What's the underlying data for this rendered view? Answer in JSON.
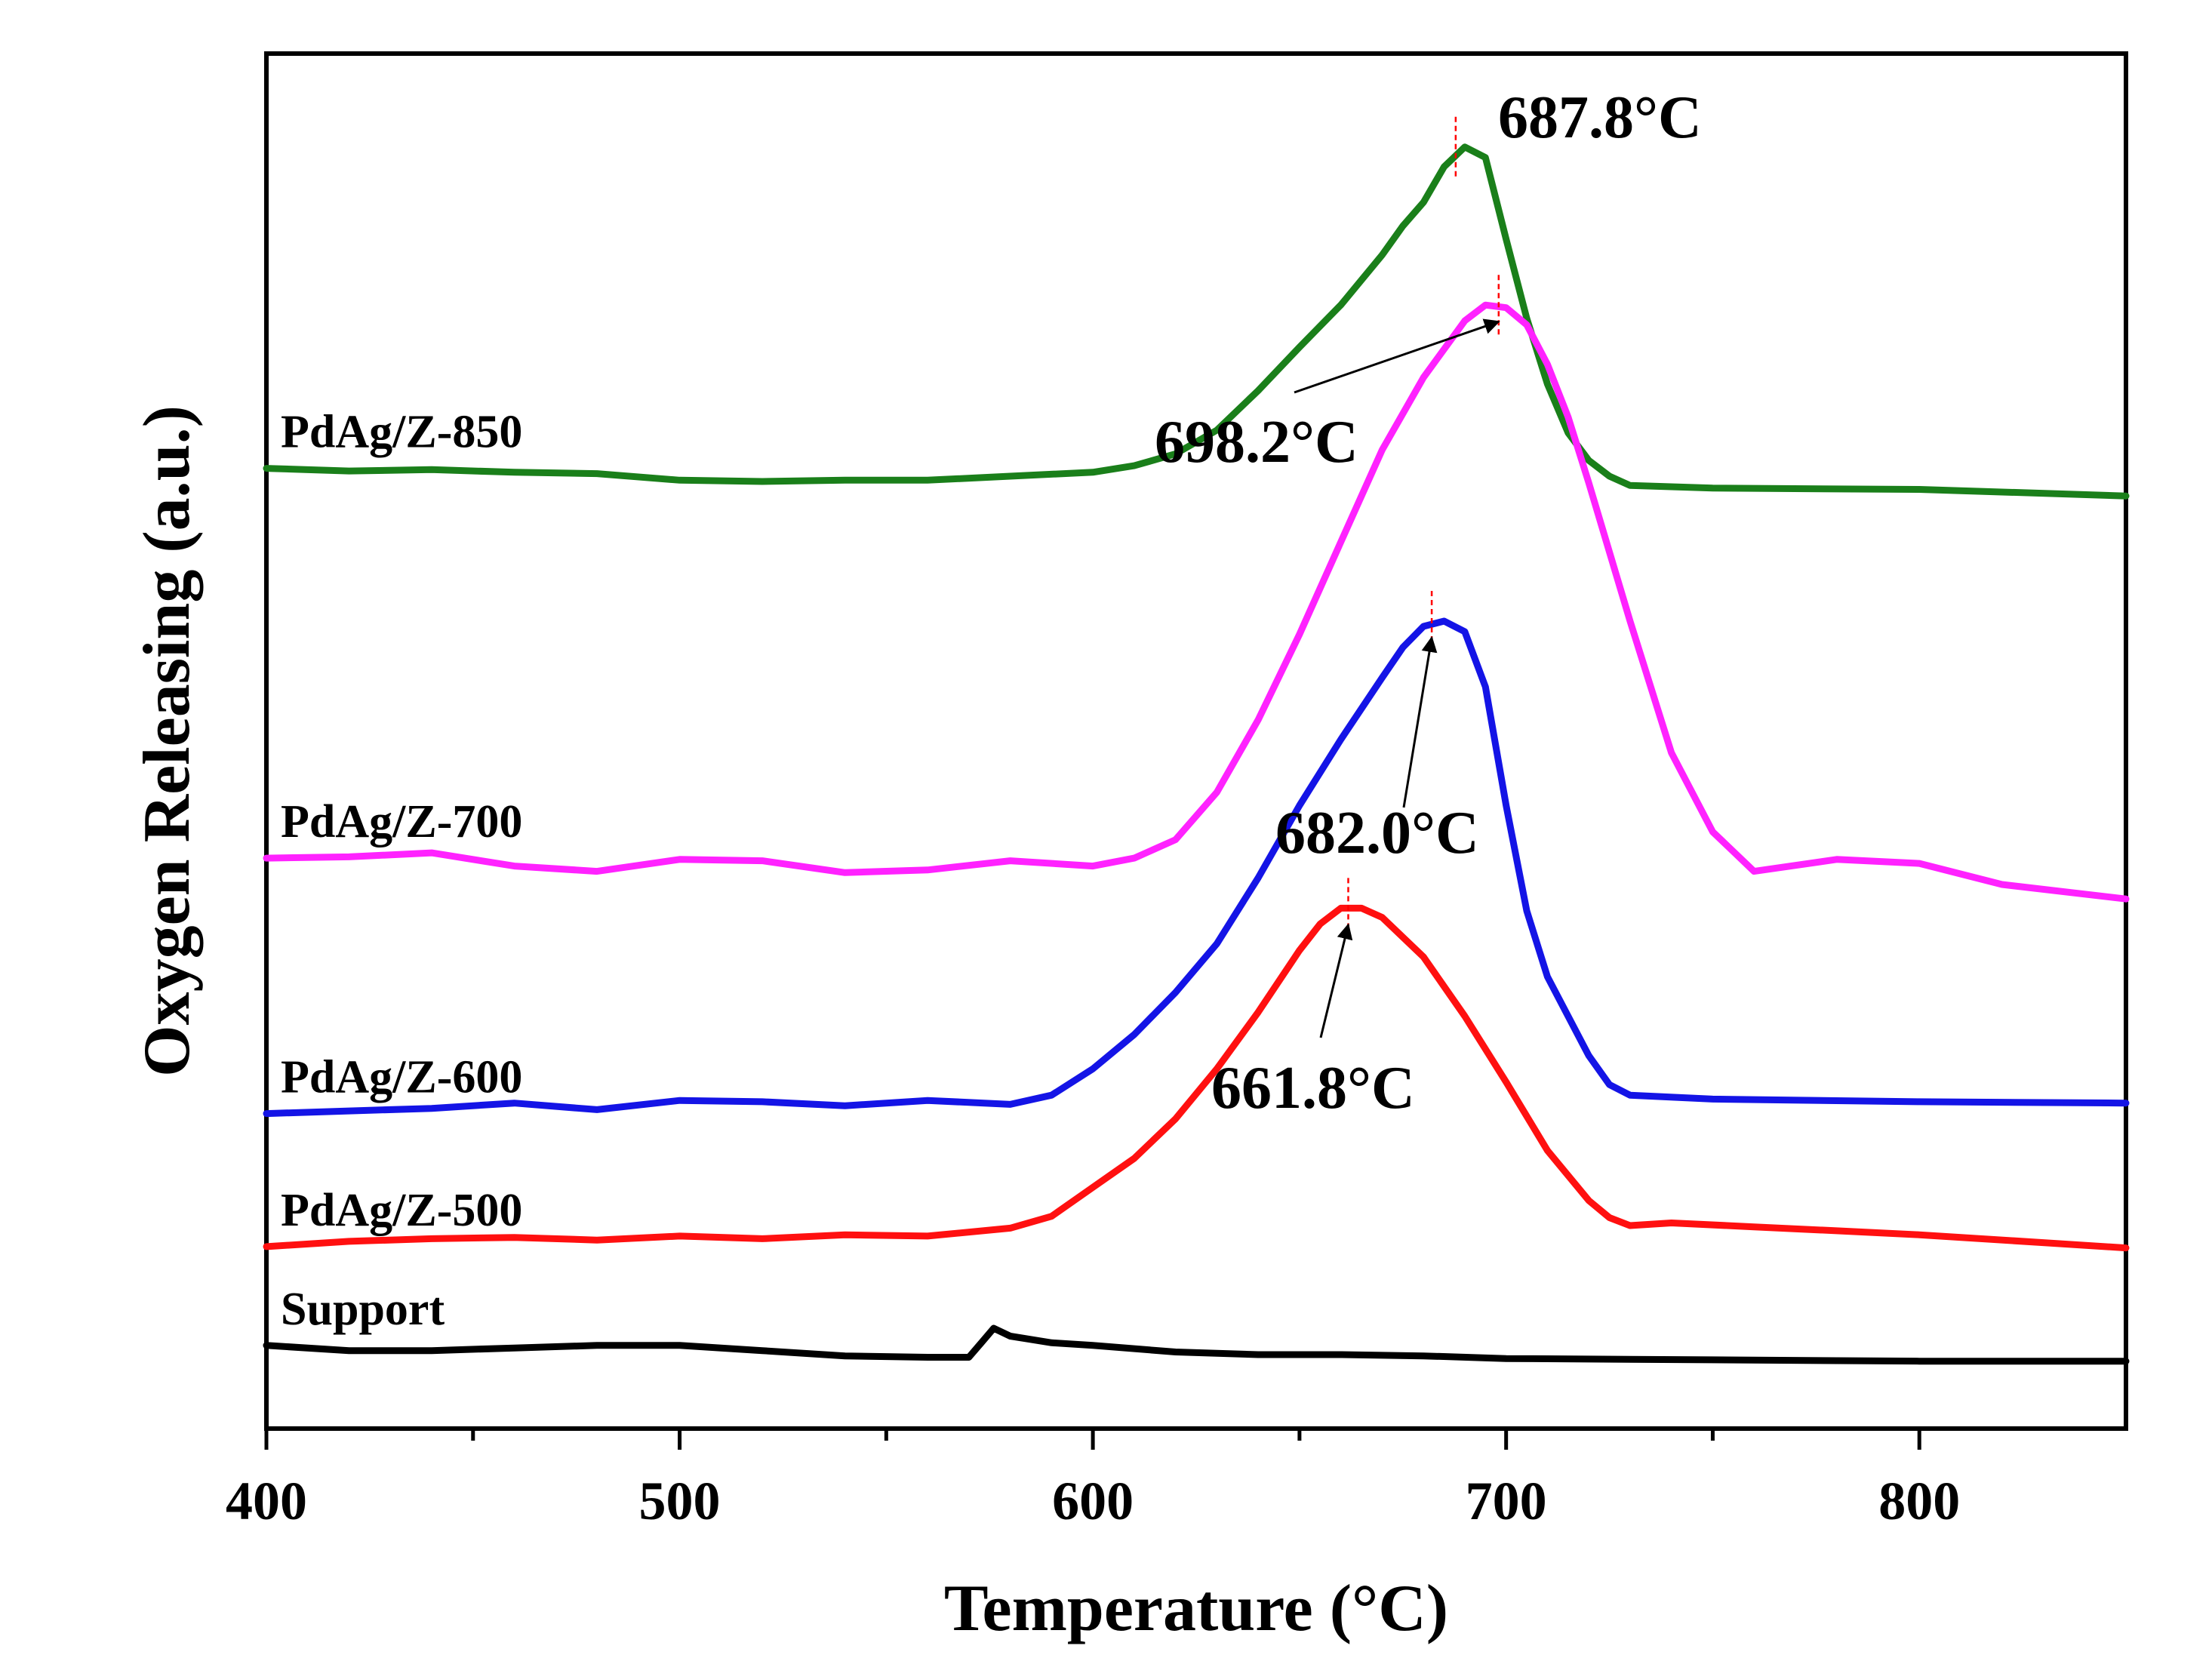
{
  "chart_data": {
    "type": "line",
    "title": "",
    "xlabel": "Temperature (°C)",
    "ylabel": "Oxygen Releasing (a.u.)",
    "xlim": [
      400,
      850
    ],
    "ylim": [
      0,
      1
    ],
    "xticks": [
      400,
      500,
      600,
      700,
      800
    ],
    "xtick_labels": [
      "400",
      "500",
      "600",
      "700",
      "800"
    ],
    "minor_xticks": [
      450,
      550,
      650,
      750
    ],
    "y_tick_labels_shown": false,
    "grid": false,
    "legend": "none (series labeled inline at left)",
    "series": [
      {
        "name": "PdAg/Z-850",
        "label": "PdAg/Z-850",
        "color": "#1a7f1a",
        "x": [
          400,
          420,
          440,
          460,
          480,
          500,
          520,
          540,
          560,
          580,
          600,
          610,
          620,
          630,
          640,
          650,
          660,
          670,
          675,
          680,
          685,
          690,
          695,
          700,
          705,
          710,
          715,
          720,
          725,
          730,
          750,
          800,
          850
        ],
        "y": [
          0.716,
          0.714,
          0.715,
          0.713,
          0.712,
          0.707,
          0.706,
          0.707,
          0.707,
          0.71,
          0.713,
          0.718,
          0.727,
          0.745,
          0.775,
          0.808,
          0.84,
          0.878,
          0.9,
          0.918,
          0.945,
          0.96,
          0.952,
          0.89,
          0.83,
          0.78,
          0.743,
          0.722,
          0.71,
          0.703,
          0.701,
          0.7,
          0.695
        ]
      },
      {
        "name": "PdAg/Z-700",
        "label": "PdAg/Z-700",
        "color": "#ff22ff",
        "x": [
          400,
          420,
          440,
          460,
          480,
          500,
          520,
          540,
          560,
          580,
          600,
          610,
          620,
          630,
          640,
          650,
          660,
          670,
          680,
          690,
          695,
          700,
          705,
          710,
          715,
          720,
          730,
          740,
          750,
          760,
          780,
          800,
          820,
          850
        ],
        "y": [
          0.42,
          0.421,
          0.424,
          0.414,
          0.41,
          0.419,
          0.418,
          0.409,
          0.411,
          0.418,
          0.414,
          0.42,
          0.434,
          0.47,
          0.525,
          0.59,
          0.66,
          0.73,
          0.785,
          0.828,
          0.84,
          0.838,
          0.825,
          0.795,
          0.755,
          0.705,
          0.6,
          0.5,
          0.44,
          0.41,
          0.419,
          0.416,
          0.4,
          0.389
        ]
      },
      {
        "name": "PdAg/Z-600",
        "label": "PdAg/Z-600",
        "color": "#1414e6",
        "x": [
          400,
          420,
          440,
          460,
          480,
          500,
          520,
          540,
          560,
          580,
          590,
          600,
          610,
          620,
          630,
          640,
          650,
          660,
          670,
          675,
          680,
          685,
          690,
          695,
          700,
          705,
          710,
          720,
          725,
          730,
          750,
          800,
          850
        ],
        "y": [
          0.226,
          0.228,
          0.23,
          0.234,
          0.229,
          0.236,
          0.235,
          0.232,
          0.236,
          0.233,
          0.24,
          0.26,
          0.286,
          0.318,
          0.355,
          0.405,
          0.46,
          0.51,
          0.557,
          0.58,
          0.596,
          0.6,
          0.592,
          0.55,
          0.46,
          0.38,
          0.33,
          0.27,
          0.248,
          0.24,
          0.237,
          0.235,
          0.234
        ]
      },
      {
        "name": "PdAg/Z-500",
        "label": "PdAg/Z-500",
        "color": "#ff1010",
        "x": [
          400,
          420,
          440,
          460,
          480,
          500,
          520,
          540,
          560,
          580,
          590,
          600,
          610,
          620,
          630,
          640,
          650,
          655,
          660,
          665,
          670,
          680,
          690,
          700,
          710,
          720,
          725,
          730,
          740,
          760,
          780,
          800,
          850
        ],
        "y": [
          0.125,
          0.129,
          0.131,
          0.132,
          0.13,
          0.133,
          0.131,
          0.134,
          0.133,
          0.139,
          0.148,
          0.17,
          0.192,
          0.222,
          0.26,
          0.303,
          0.35,
          0.37,
          0.382,
          0.382,
          0.375,
          0.345,
          0.3,
          0.25,
          0.198,
          0.16,
          0.147,
          0.141,
          0.143,
          0.14,
          0.137,
          0.134,
          0.124
        ]
      },
      {
        "name": "Support",
        "label": "Support",
        "color": "#000000",
        "x": [
          400,
          420,
          440,
          460,
          480,
          500,
          520,
          540,
          560,
          570,
          573,
          576,
          580,
          590,
          600,
          620,
          640,
          660,
          680,
          700,
          750,
          800,
          850
        ],
        "y": [
          0.05,
          0.046,
          0.046,
          0.048,
          0.05,
          0.05,
          0.046,
          0.042,
          0.041,
          0.041,
          0.052,
          0.063,
          0.057,
          0.052,
          0.05,
          0.045,
          0.043,
          0.043,
          0.042,
          0.04,
          0.039,
          0.038,
          0.038
        ]
      }
    ],
    "annotations": [
      {
        "label": "687.8°C",
        "peak_x": 687.8,
        "peak_y": 0.96,
        "series": "PdAg/Z-850",
        "arrow": false
      },
      {
        "label": "698.2°C",
        "peak_x": 698.2,
        "peak_y": 0.84,
        "series": "PdAg/Z-700",
        "arrow": true
      },
      {
        "label": "682.0°C",
        "peak_x": 682.0,
        "peak_y": 0.6,
        "series": "PdAg/Z-600",
        "arrow": true
      },
      {
        "label": "661.8°C",
        "peak_x": 661.8,
        "peak_y": 0.382,
        "series": "PdAg/Z-500",
        "arrow": true
      }
    ]
  }
}
